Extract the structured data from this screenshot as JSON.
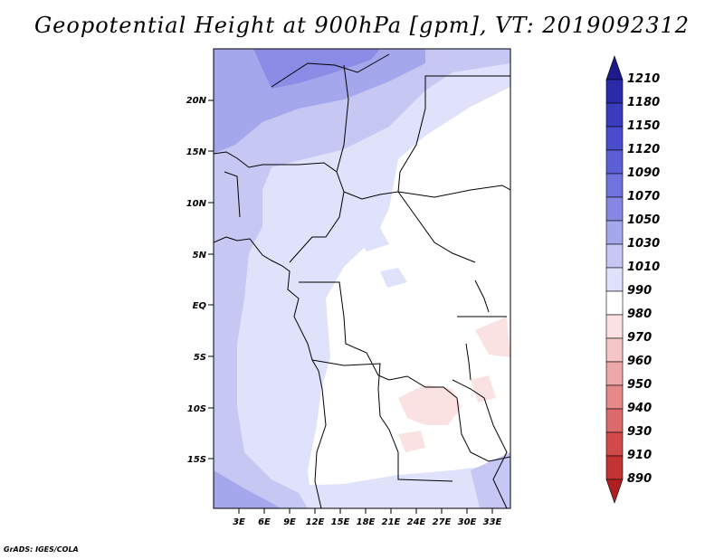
{
  "title": "Geopotential Height at 900hPa [gpm], VT: 2019092312",
  "footer": "GrADS: IGES/COLA",
  "map": {
    "lat_labels": [
      "20N",
      "15N",
      "10N",
      "5N",
      "EQ",
      "5S",
      "10S",
      "15S"
    ],
    "lon_labels": [
      "3E",
      "6E",
      "9E",
      "12E",
      "15E",
      "18E",
      "21E",
      "24E",
      "27E",
      "30E",
      "33E"
    ]
  },
  "colorbar": {
    "levels": [
      "1210",
      "1180",
      "1150",
      "1120",
      "1090",
      "1070",
      "1050",
      "1030",
      "1010",
      "990",
      "980",
      "970",
      "960",
      "950",
      "940",
      "930",
      "910",
      "890"
    ],
    "colors": [
      "#1f1a8c",
      "#2b2aa8",
      "#3a3bbd",
      "#4a4ccc",
      "#5d5fd6",
      "#7072de",
      "#8587e3",
      "#a5a7ec",
      "#c6c7f3",
      "#e0e1fa",
      "#ffffff",
      "#fbe2e2",
      "#f5c6c6",
      "#eea8a8",
      "#e58989",
      "#dc6a6a",
      "#d04a4a",
      "#c23333",
      "#b01f1f"
    ]
  }
}
